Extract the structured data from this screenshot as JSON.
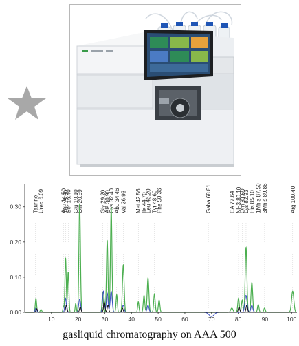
{
  "decor": {
    "star_color": "#a8a8a8"
  },
  "instrument": {
    "screen_tiles_colors": [
      "#2e8b57",
      "#88b84a",
      "#e6a23c",
      "#4b7bc4",
      "#2e8b57",
      "#88b84a"
    ],
    "bottles_cap_color": "#1f55b5"
  },
  "chart_data": {
    "type": "line",
    "xlabel": "",
    "ylabel": "",
    "xlim": [
      0,
      102
    ],
    "ylim": [
      0,
      0.36
    ],
    "x_ticks": [
      "10",
      "20",
      "30",
      "40",
      "50",
      "60",
      "70",
      "80",
      "90",
      "100"
    ],
    "y_ticks": [
      "0.00",
      "0.10",
      "0.20",
      "0.30"
    ],
    "peak_labels": [
      {
        "label": "Taurine",
        "x": 4.0
      },
      {
        "label": "Urea 6.09",
        "x": 6.09
      },
      {
        "label": "Asp 14.50",
        "x": 14.5
      },
      {
        "label": "Thr 15.30",
        "x": 15.3
      },
      {
        "label": "Ser 16.40",
        "x": 16.4
      },
      {
        "label": "Glu 19.10",
        "x": 19.1
      },
      {
        "label": "Gln 20.59",
        "x": 20.59
      },
      {
        "label": "Gly 29.20",
        "x": 29.2
      },
      {
        "label": "Ala 30.90",
        "x": 30.9
      },
      {
        "label": "Cys 32.40",
        "x": 32.4
      },
      {
        "label": "Abu 34.46",
        "x": 34.46
      },
      {
        "label": "Val 36.93",
        "x": 36.93
      },
      {
        "label": "Met 42.56",
        "x": 42.56
      },
      {
        "label": "Ile 44.70",
        "x": 44.7
      },
      {
        "label": "Leu 46.20",
        "x": 46.2
      },
      {
        "label": "Tyr 48.60",
        "x": 48.6
      },
      {
        "label": "Phe 50.36",
        "x": 50.36
      },
      {
        "label": "Gaba 68.81",
        "x": 68.81
      },
      {
        "label": "EA 77.64",
        "x": 77.64
      },
      {
        "label": "NH3 80.10",
        "x": 80.1
      },
      {
        "label": "Orn 81.50",
        "x": 81.5
      },
      {
        "label": "Lys 82.93",
        "x": 82.93
      },
      {
        "label": "His 85.10",
        "x": 85.1
      },
      {
        "label": "1Mhis 87.50",
        "x": 87.5
      },
      {
        "label": "3Mhis 89.86",
        "x": 89.86
      },
      {
        "label": "Arg 100.40",
        "x": 100.4
      }
    ],
    "series": [
      {
        "color": "#4caf50",
        "peaks": [
          {
            "x": 4.2,
            "h": 0.04,
            "w": 0.35
          },
          {
            "x": 6.09,
            "h": 0.008,
            "w": 0.4
          },
          {
            "x": 14.5,
            "h": 0.016,
            "w": 0.3
          },
          {
            "x": 15.3,
            "h": 0.155,
            "w": 0.35
          },
          {
            "x": 16.3,
            "h": 0.115,
            "w": 0.35
          },
          {
            "x": 19.1,
            "h": 0.025,
            "w": 0.3
          },
          {
            "x": 20.59,
            "h": 0.31,
            "w": 0.4
          },
          {
            "x": 29.2,
            "h": 0.055,
            "w": 0.35
          },
          {
            "x": 30.9,
            "h": 0.205,
            "w": 0.4
          },
          {
            "x": 32.4,
            "h": 0.3,
            "w": 0.4
          },
          {
            "x": 34.46,
            "h": 0.05,
            "w": 0.35
          },
          {
            "x": 36.93,
            "h": 0.135,
            "w": 0.45
          },
          {
            "x": 42.56,
            "h": 0.03,
            "w": 0.35
          },
          {
            "x": 44.7,
            "h": 0.048,
            "w": 0.4
          },
          {
            "x": 46.2,
            "h": 0.098,
            "w": 0.45
          },
          {
            "x": 48.6,
            "h": 0.052,
            "w": 0.4
          },
          {
            "x": 50.36,
            "h": 0.035,
            "w": 0.4
          },
          {
            "x": 77.6,
            "h": 0.012,
            "w": 0.6
          },
          {
            "x": 80.1,
            "h": 0.04,
            "w": 0.4
          },
          {
            "x": 81.5,
            "h": 0.035,
            "w": 0.4
          },
          {
            "x": 82.93,
            "h": 0.185,
            "w": 0.45
          },
          {
            "x": 85.1,
            "h": 0.085,
            "w": 0.45
          },
          {
            "x": 87.5,
            "h": 0.022,
            "w": 0.4
          },
          {
            "x": 89.86,
            "h": 0.012,
            "w": 0.4
          },
          {
            "x": 100.4,
            "h": 0.06,
            "w": 0.6
          }
        ],
        "dip": null
      },
      {
        "color": "#3b4fc4",
        "peaks": [
          {
            "x": 4.2,
            "h": 0.012,
            "w": 0.4
          },
          {
            "x": 15.3,
            "h": 0.04,
            "w": 0.4
          },
          {
            "x": 20.59,
            "h": 0.038,
            "w": 0.5
          },
          {
            "x": 29.5,
            "h": 0.06,
            "w": 0.45
          },
          {
            "x": 30.9,
            "h": 0.055,
            "w": 0.45
          },
          {
            "x": 32.4,
            "h": 0.06,
            "w": 0.5
          },
          {
            "x": 36.9,
            "h": 0.02,
            "w": 0.5
          },
          {
            "x": 46.2,
            "h": 0.02,
            "w": 0.5
          },
          {
            "x": 82.9,
            "h": 0.048,
            "w": 0.6
          },
          {
            "x": 85.1,
            "h": 0.02,
            "w": 0.5
          }
        ],
        "dip": {
          "x": 70.0,
          "h": -0.012,
          "w": 1.3
        }
      },
      {
        "color": "#111111",
        "peaks": [
          {
            "x": 4.5,
            "h": 0.01,
            "w": 0.4
          },
          {
            "x": 15.6,
            "h": 0.02,
            "w": 0.4
          },
          {
            "x": 20.8,
            "h": 0.015,
            "w": 0.4
          },
          {
            "x": 29.8,
            "h": 0.03,
            "w": 0.4
          },
          {
            "x": 31.2,
            "h": 0.02,
            "w": 0.4
          },
          {
            "x": 36.6,
            "h": 0.012,
            "w": 0.4
          },
          {
            "x": 80.3,
            "h": 0.015,
            "w": 0.4
          },
          {
            "x": 83.2,
            "h": 0.02,
            "w": 0.4
          }
        ],
        "dip": null
      }
    ]
  },
  "caption": "gasliquid chromatography on AAA 500"
}
